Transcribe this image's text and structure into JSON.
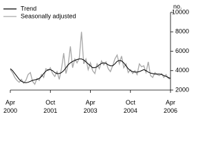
{
  "chart_data": {
    "type": "line",
    "x": [
      "2000-04",
      "2000-05",
      "2000-06",
      "2000-07",
      "2000-08",
      "2000-09",
      "2000-10",
      "2000-11",
      "2000-12",
      "2001-01",
      "2001-02",
      "2001-03",
      "2001-04",
      "2001-05",
      "2001-06",
      "2001-07",
      "2001-08",
      "2001-09",
      "2001-10",
      "2001-11",
      "2001-12",
      "2002-01",
      "2002-02",
      "2002-03",
      "2002-04",
      "2002-05",
      "2002-06",
      "2002-07",
      "2002-08",
      "2002-09",
      "2002-10",
      "2002-11",
      "2002-12",
      "2003-01",
      "2003-02",
      "2003-03",
      "2003-04",
      "2003-05",
      "2003-06",
      "2003-07",
      "2003-08",
      "2003-09",
      "2003-10",
      "2003-11",
      "2003-12",
      "2004-01",
      "2004-02",
      "2004-03",
      "2004-04",
      "2004-05",
      "2004-06",
      "2004-07",
      "2004-08",
      "2004-09",
      "2004-10",
      "2004-11",
      "2004-12",
      "2005-01",
      "2005-02",
      "2005-03",
      "2005-04",
      "2005-05",
      "2005-06",
      "2005-07",
      "2005-08",
      "2005-09",
      "2005-10",
      "2005-11",
      "2005-12",
      "2006-01",
      "2006-02",
      "2006-03",
      "2006-04"
    ],
    "series": [
      {
        "name": "Trend",
        "color": "#000000",
        "values": [
          4200,
          4000,
          3700,
          3400,
          3100,
          2900,
          2800,
          2750,
          2800,
          2900,
          3000,
          3050,
          3100,
          3200,
          3400,
          3700,
          3950,
          4100,
          4100,
          4000,
          3800,
          3700,
          3700,
          3800,
          4000,
          4300,
          4600,
          4800,
          4950,
          5050,
          5150,
          5200,
          5200,
          5100,
          4900,
          4700,
          4500,
          4300,
          4300,
          4400,
          4600,
          4750,
          4800,
          4750,
          4600,
          4500,
          4500,
          4700,
          4950,
          5050,
          5000,
          4800,
          4500,
          4200,
          4000,
          3900,
          3850,
          3850,
          3900,
          4000,
          4100,
          4000,
          3850,
          3750,
          3700,
          3650,
          3650,
          3650,
          3600,
          3500,
          3400,
          3300,
          3200
        ]
      },
      {
        "name": "Seasonally adjusted",
        "color": "#a6a6a6",
        "values": [
          4100,
          3800,
          3300,
          3000,
          2800,
          3100,
          2700,
          3000,
          3600,
          3800,
          2900,
          2600,
          3200,
          3000,
          3600,
          3300,
          4200,
          4000,
          4300,
          3700,
          3400,
          3900,
          3100,
          4200,
          5800,
          3700,
          4600,
          6500,
          4300,
          5200,
          4800,
          5300,
          8000,
          4700,
          5200,
          4100,
          4800,
          4000,
          3700,
          4700,
          4200,
          5000,
          4600,
          4900,
          4200,
          3900,
          4500,
          5200,
          5600,
          4700,
          5500,
          4300,
          4700,
          3800,
          4100,
          3700,
          4000,
          3600,
          4700,
          4400,
          4500,
          3800,
          4900,
          3500,
          3300,
          3800,
          3600,
          3500,
          3700,
          3300,
          3600,
          3200,
          3100
        ]
      }
    ],
    "y_axis_label": "no.",
    "ylim": [
      2000,
      10000
    ],
    "yticks": [
      2000,
      4000,
      6000,
      8000,
      10000
    ],
    "xticks": [
      {
        "value": "2000-04",
        "label": "Apr 2000"
      },
      {
        "value": "2001-10",
        "label": "Oct 2001"
      },
      {
        "value": "2003-04",
        "label": "Apr 2003"
      },
      {
        "value": "2004-10",
        "label": "Oct 2004"
      },
      {
        "value": "2006-04",
        "label": "Apr 2006"
      }
    ],
    "legend": "top-left"
  }
}
